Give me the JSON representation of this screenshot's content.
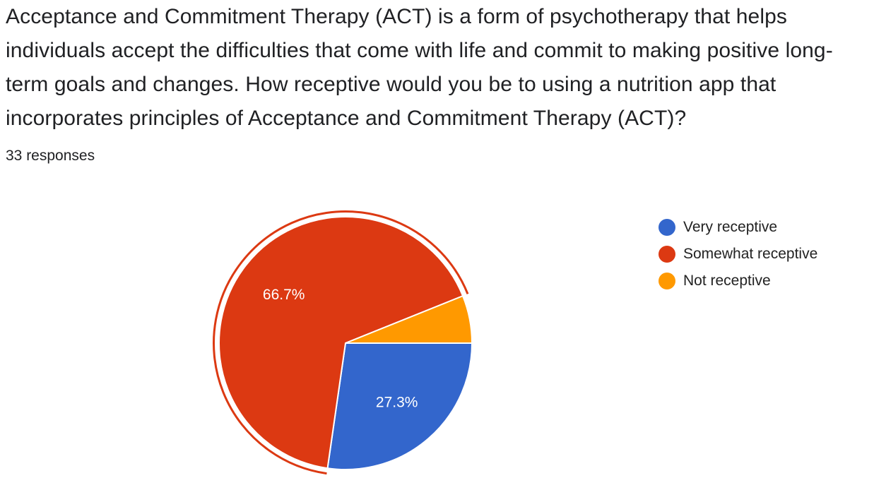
{
  "question": {
    "title": "Acceptance and Commitment Therapy (ACT) is a form of psychotherapy that helps individuals accept the difficulties that come with life and commit to making positive long-term goals and changes. How receptive would you be to using a nutrition app that incorporates principles of Acceptance and Commitment Therapy (ACT)?",
    "response_count": "33 responses"
  },
  "chart_data": {
    "type": "pie",
    "title": "",
    "slices": [
      {
        "label": "Very receptive",
        "value": 27.3,
        "display": "27.3%",
        "color": "#3366cc",
        "exploded": false
      },
      {
        "label": "Somewhat receptive",
        "value": 66.7,
        "display": "66.7%",
        "color": "#dc3912",
        "exploded": true
      },
      {
        "label": "Not receptive",
        "value": 6.1,
        "display": "",
        "color": "#ff9900",
        "exploded": false
      }
    ],
    "start_angle_deg": 0,
    "direction": "clockwise",
    "legend_position": "right"
  }
}
